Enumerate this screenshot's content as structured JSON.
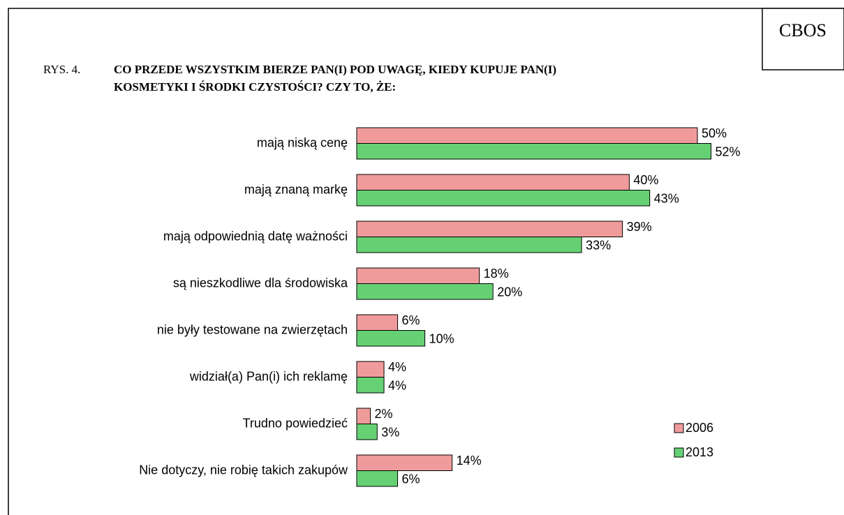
{
  "chart_data": {
    "type": "bar",
    "orientation": "horizontal",
    "source": "CBOS",
    "figure_label": "RYS. 4.",
    "title": "CO PRZEDE WSZYSTKIM BIERZE PAN(I) POD UWAGĘ, KIEDY KUPUJE PAN(I) KOSMETYKI I ŚRODKI CZYSTOŚCI? CZY TO, ŻE:",
    "categories": [
      "mają niską cenę",
      "mają znaną markę",
      "mają odpowiednią datę ważności",
      "są nieszkodliwe dla środowiska",
      "nie były testowane na zwierzętach",
      "widział(a) Pan(i) ich reklamę",
      "Trudno powiedzieć",
      "Nie dotyczy, nie robię takich zakupów"
    ],
    "series": [
      {
        "name": "2006",
        "color": "#f09b9b",
        "values": [
          50,
          40,
          39,
          18,
          6,
          4,
          2,
          14
        ],
        "value_labels": [
          "50%",
          "40%",
          "39%",
          "18%",
          "6%",
          "4%",
          "2%",
          "14%"
        ]
      },
      {
        "name": "2013",
        "color": "#66d174",
        "values": [
          52,
          43,
          33,
          20,
          10,
          4,
          3,
          6
        ],
        "value_labels": [
          "52%",
          "43%",
          "33%",
          "20%",
          "10%",
          "4%",
          "3%",
          "6%"
        ]
      }
    ],
    "xlim": [
      0,
      100
    ],
    "legend": "lower-right"
  }
}
